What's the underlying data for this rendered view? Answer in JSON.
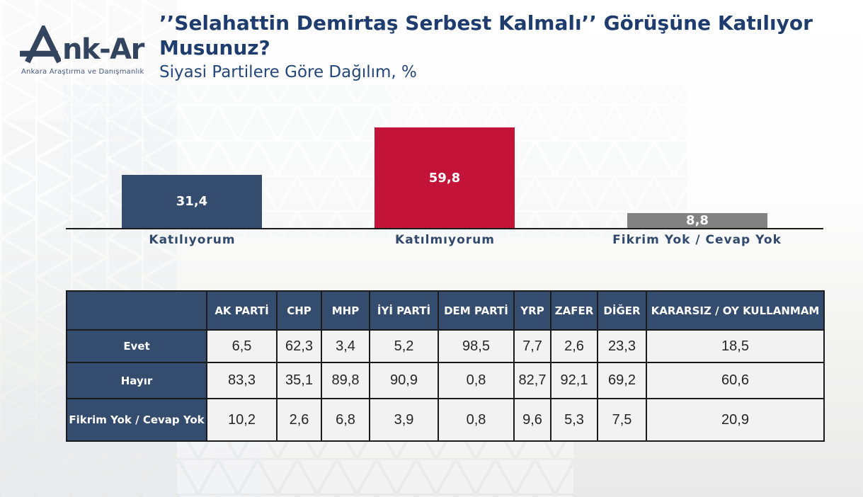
{
  "logo": {
    "name": "Ank-Ar",
    "wordmark": "nk-Ar",
    "tagline": "Ankara Araştırma ve Danışmanlık"
  },
  "header": {
    "title": "’’Selahattin Demirtaş Serbest Kalmalı’’ Görüşüne Katılıyor Musunuz?",
    "subtitle": "Siyasi Partilere Göre Dağılım, %"
  },
  "colors": {
    "navy": "#344c6d",
    "red": "#c41339",
    "gray": "#828282",
    "title_navy": "#1f3c6e"
  },
  "chart_data": {
    "type": "bar",
    "categories": [
      "Katılıyorum",
      "Katılmıyorum",
      "Fikrim Yok / Cevap Yok"
    ],
    "values": [
      31.4,
      59.8,
      8.8
    ],
    "value_labels": [
      "31,4",
      "59,8",
      "8,8"
    ],
    "bar_colors": [
      "#344c6d",
      "#c41339",
      "#828282"
    ],
    "title": "’’Selahattin Demirtaş Serbest Kalmalı’’ Görüşüne Katılıyor Musunuz? — Siyasi Partilere Göre Dağılım, %",
    "xlabel": "",
    "ylabel": "",
    "ylim": [
      0,
      65
    ],
    "data_labels": "inside-center",
    "grid": false,
    "legend": false
  },
  "table": {
    "columns": [
      "",
      "AK PARTİ",
      "CHP",
      "MHP",
      "İYİ PARTİ",
      "DEM PARTİ",
      "YRP",
      "ZAFER",
      "DİĞER",
      "KARARSIZ / OY KULLANMAM"
    ],
    "rows": [
      {
        "label": "Evet",
        "values": [
          "6,5",
          "62,3",
          "3,4",
          "5,2",
          "98,5",
          "7,7",
          "2,6",
          "23,3",
          "18,5"
        ]
      },
      {
        "label": "Hayır",
        "values": [
          "83,3",
          "35,1",
          "89,8",
          "90,9",
          "0,8",
          "82,7",
          "92,1",
          "69,2",
          "60,6"
        ]
      },
      {
        "label": "Fikrim Yok / Cevap Yok",
        "values": [
          "10,2",
          "2,6",
          "6,8",
          "3,9",
          "0,8",
          "9,6",
          "5,3",
          "7,5",
          "20,9"
        ]
      }
    ]
  }
}
